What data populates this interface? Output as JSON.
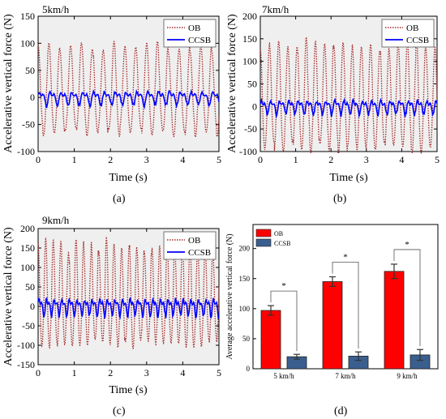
{
  "chart_data": [
    {
      "panel": "a",
      "type": "line",
      "title": "5km/h",
      "xlabel": "Time (s)",
      "ylabel": "Accelerative vertical force (N)",
      "xlim": [
        0,
        5
      ],
      "ylim": [
        -100,
        150
      ],
      "xticks": [
        0,
        1,
        2,
        3,
        4,
        5
      ],
      "yticks": [
        -100,
        -50,
        0,
        50,
        100,
        150
      ],
      "legend": "top-right",
      "series": [
        {
          "name": "OB",
          "color": "#a52a2a",
          "style": "dotted",
          "period": 0.3,
          "amp_max": 105,
          "amp_min": -75
        },
        {
          "name": "CCSB",
          "color": "#0000ff",
          "style": "solid",
          "amplitude": 20
        }
      ]
    },
    {
      "panel": "b",
      "type": "line",
      "title": "7km/h",
      "xlabel": "Time (s)",
      "ylabel": "Accelerative vertical force (N)",
      "xlim": [
        0,
        5
      ],
      "ylim": [
        -100,
        200
      ],
      "xticks": [
        0,
        1,
        2,
        3,
        4,
        5
      ],
      "yticks": [
        -100,
        -50,
        0,
        50,
        100,
        150,
        200
      ],
      "legend": "top-right",
      "series": [
        {
          "name": "OB",
          "color": "#a52a2a",
          "style": "dotted",
          "period": 0.26,
          "amp_max": 155,
          "amp_min": -105
        },
        {
          "name": "CCSB",
          "color": "#0000ff",
          "style": "solid",
          "amplitude": 25
        }
      ]
    },
    {
      "panel": "c",
      "type": "line",
      "title": "9km/h",
      "xlabel": "Time (s)",
      "ylabel": "Accelerative vertical force (N)",
      "xlim": [
        0,
        5
      ],
      "ylim": [
        -150,
        200
      ],
      "xticks": [
        0,
        1,
        2,
        3,
        4,
        5
      ],
      "yticks": [
        -150,
        -100,
        -50,
        0,
        50,
        100,
        150,
        200
      ],
      "legend": "top-right",
      "series": [
        {
          "name": "OB",
          "color": "#a52a2a",
          "style": "dotted",
          "period": 0.21,
          "amp_max": 175,
          "amp_min": -110
        },
        {
          "name": "CCSB",
          "color": "#0000ff",
          "style": "solid",
          "amplitude": 35
        }
      ]
    },
    {
      "panel": "d",
      "type": "bar",
      "ylabel": "Average accelerative vertical force (N)",
      "categories": [
        "5 km/h",
        "7 km/h",
        "9 km/h"
      ],
      "ylim": [
        0,
        240
      ],
      "yticks": [
        0,
        50,
        100,
        150,
        200
      ],
      "legend": "top-left",
      "series": [
        {
          "name": "OB",
          "color": "#ff0000",
          "values": [
            97,
            145,
            162
          ],
          "errors": [
            8,
            8,
            12
          ]
        },
        {
          "name": "CCSB",
          "color": "#3a5f8f",
          "values": [
            20,
            21,
            23
          ],
          "errors": [
            4,
            7,
            9
          ]
        }
      ],
      "significance": [
        "*",
        "*",
        "*"
      ]
    }
  ],
  "panel_labels": [
    "(a)",
    "(b)",
    "(c)",
    "(d)"
  ]
}
